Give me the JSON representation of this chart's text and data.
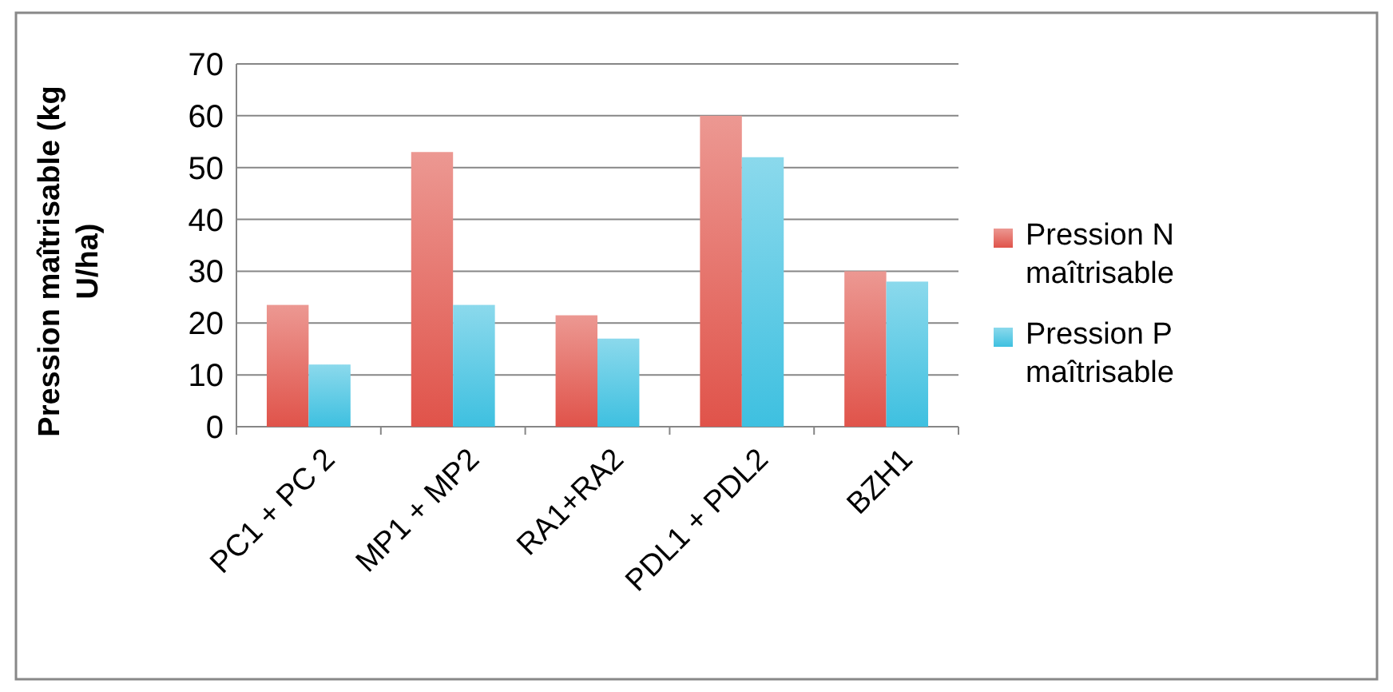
{
  "chart_data": {
    "type": "bar",
    "ylabel": "Pression maîtrisable (kg U/ha)",
    "categories": [
      "PC1 + PC 2",
      "MP1 + MP2",
      "RA1+RA2",
      "PDL1 + PDL2",
      "BZH1"
    ],
    "series": [
      {
        "name": "Pression N maîtrisable",
        "color": "#e0534a",
        "values": [
          23.5,
          53,
          21.5,
          60,
          30
        ]
      },
      {
        "name": "Pression P maîtrisable",
        "color": "#3ec0e0",
        "values": [
          12,
          23.5,
          17,
          52,
          28
        ]
      }
    ],
    "ylim": [
      0,
      70
    ],
    "yticks": [
      0,
      10,
      20,
      30,
      40,
      50,
      60,
      70
    ],
    "grid": "y",
    "legend": "right"
  }
}
